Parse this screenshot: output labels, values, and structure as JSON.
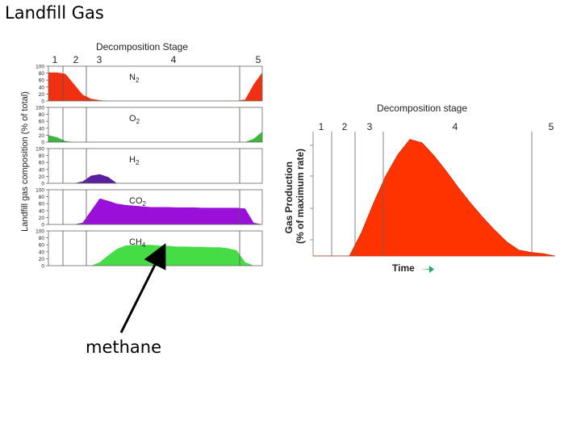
{
  "slide": {
    "title": "Landfill Gas",
    "callout": "methane"
  },
  "chart_data": [
    {
      "type": "area",
      "title": "Decomposition Stage",
      "ylabel": "Landfill gas composition (% of total)",
      "stages": [
        "1",
        "2",
        "3",
        "4",
        "5"
      ],
      "yticks": [
        0,
        20,
        40,
        60,
        80,
        100
      ],
      "ylim": [
        0,
        100
      ],
      "x": [
        0,
        4,
        8,
        12,
        16,
        20,
        24,
        28,
        32,
        36,
        40,
        44,
        48,
        52,
        56,
        60,
        64,
        68,
        72,
        76,
        80,
        84,
        88,
        92,
        96,
        100
      ],
      "series": [
        {
          "name": "N2",
          "color": "#f03010",
          "values": [
            82,
            82,
            78,
            48,
            18,
            6,
            2,
            0,
            0,
            0,
            0,
            0,
            0,
            0,
            0,
            0,
            0,
            0,
            0,
            0,
            0,
            0,
            0,
            4,
            48,
            82
          ]
        },
        {
          "name": "O2",
          "color": "#3cb83c",
          "values": [
            20,
            14,
            3,
            0,
            0,
            0,
            0,
            0,
            0,
            0,
            0,
            0,
            0,
            0,
            0,
            0,
            0,
            0,
            0,
            0,
            0,
            0,
            0,
            0,
            10,
            30
          ]
        },
        {
          "name": "H2",
          "color": "#5a1ea0",
          "values": [
            0,
            0,
            0,
            0,
            5,
            22,
            26,
            18,
            0,
            0,
            0,
            0,
            0,
            0,
            0,
            0,
            0,
            0,
            0,
            0,
            0,
            0,
            0,
            0,
            0,
            0
          ]
        },
        {
          "name": "CO2",
          "color": "#9a10d8",
          "values": [
            0,
            0,
            0,
            0,
            5,
            40,
            75,
            68,
            60,
            56,
            54,
            52,
            50,
            50,
            50,
            49,
            49,
            49,
            48,
            48,
            48,
            48,
            48,
            46,
            5,
            0
          ]
        },
        {
          "name": "CH4",
          "color": "#46dc46",
          "values": [
            0,
            0,
            0,
            0,
            0,
            0,
            10,
            30,
            48,
            58,
            60,
            60,
            60,
            58,
            57,
            55,
            55,
            54,
            54,
            53,
            53,
            50,
            44,
            10,
            0,
            0
          ]
        }
      ]
    },
    {
      "type": "area",
      "title": "Decomposition stage",
      "xlabel": "Time",
      "ylabel": "Gas Production (% of maximum rate)",
      "stages": [
        "1",
        "2",
        "3",
        "4",
        "5"
      ],
      "ylim": [
        0,
        100
      ],
      "x": [
        0,
        10,
        15,
        20,
        25,
        30,
        35,
        40,
        45,
        50,
        55,
        60,
        65,
        70,
        75,
        80,
        85,
        90,
        95,
        100
      ],
      "series": [
        {
          "name": "",
          "color": "#ff3300",
          "values": [
            0,
            0,
            0,
            20,
            45,
            68,
            86,
            99,
            96,
            85,
            72,
            58,
            45,
            33,
            22,
            12,
            5,
            3,
            2,
            0
          ]
        }
      ]
    }
  ]
}
